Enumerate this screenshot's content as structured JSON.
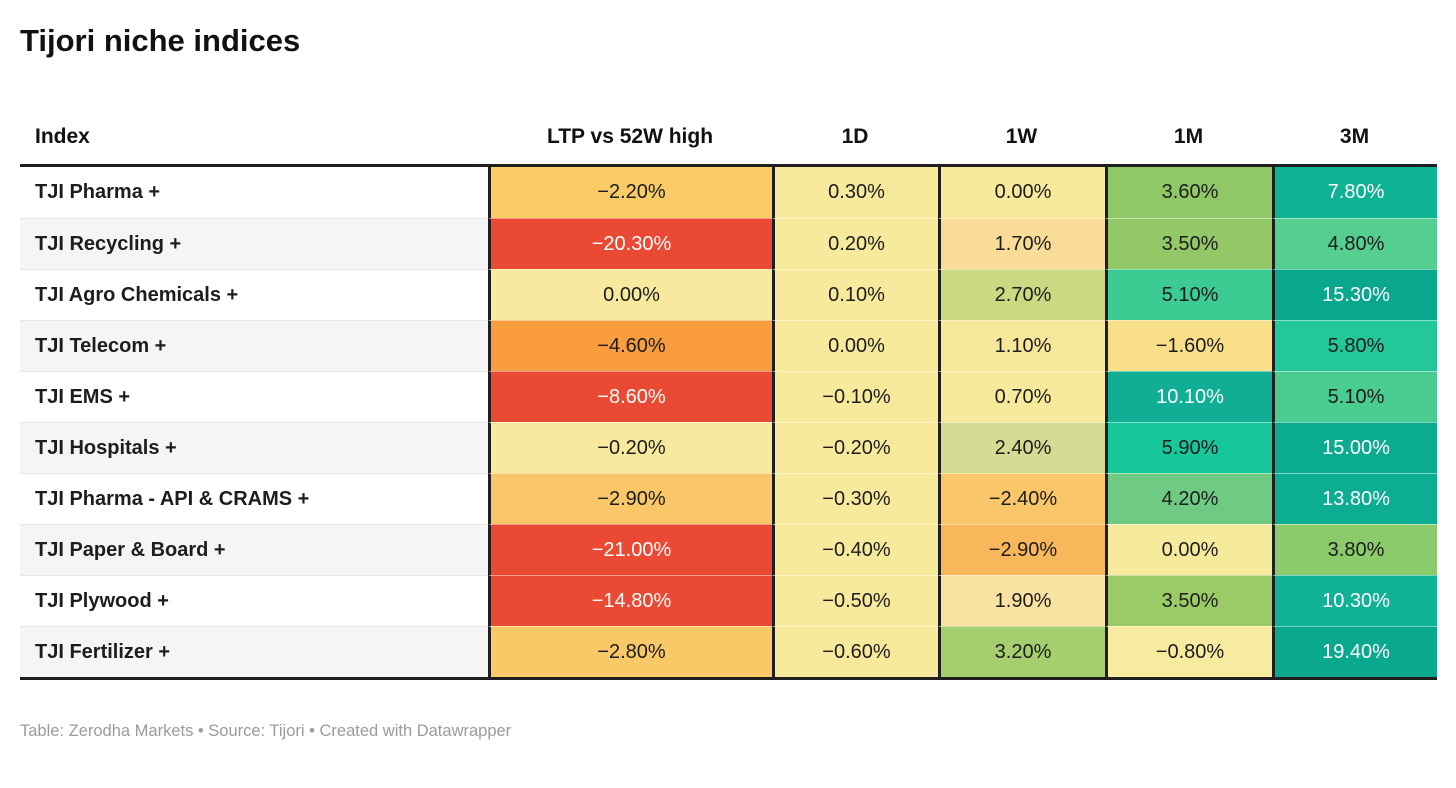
{
  "title": "Tijori niche indices",
  "footer": "Table: Zerodha Markets • Source: Tijori • Created with Datawrapper",
  "table": {
    "columns": [
      "Index",
      "LTP vs 52W high",
      "1D",
      "1W",
      "1M",
      "3M"
    ],
    "rows": [
      {
        "index": "TJI Pharma +",
        "cells": [
          {
            "value": "−2.20%",
            "bg": "#F9CB67",
            "fg": "#1d1d1d"
          },
          {
            "value": "0.30%",
            "bg": "#F7EA9C",
            "fg": "#1d1d1d"
          },
          {
            "value": "0.00%",
            "bg": "#F7EA9C",
            "fg": "#1d1d1d"
          },
          {
            "value": "3.60%",
            "bg": "#90C867",
            "fg": "#1d1d1d"
          },
          {
            "value": "7.80%",
            "bg": "#0EB295",
            "fg": "#ffffff"
          }
        ]
      },
      {
        "index": "TJI Recycling +",
        "cells": [
          {
            "value": "−20.30%",
            "bg": "#EA4A33",
            "fg": "#ffffff"
          },
          {
            "value": "0.20%",
            "bg": "#F7EA9C",
            "fg": "#1d1d1d"
          },
          {
            "value": "1.70%",
            "bg": "#F8DC97",
            "fg": "#1d1d1d"
          },
          {
            "value": "3.50%",
            "bg": "#92C966",
            "fg": "#1d1d1d"
          },
          {
            "value": "4.80%",
            "bg": "#55CF90",
            "fg": "#1d1d1d"
          }
        ]
      },
      {
        "index": "TJI Agro Chemicals +",
        "cells": [
          {
            "value": "0.00%",
            "bg": "#F7EA9E",
            "fg": "#1d1d1d"
          },
          {
            "value": "0.10%",
            "bg": "#F7EA9C",
            "fg": "#1d1d1d"
          },
          {
            "value": "2.70%",
            "bg": "#CBD982",
            "fg": "#1d1d1d"
          },
          {
            "value": "5.10%",
            "bg": "#3BCB93",
            "fg": "#1d1d1d"
          },
          {
            "value": "15.30%",
            "bg": "#09A78E",
            "fg": "#ffffff"
          }
        ]
      },
      {
        "index": "TJI Telecom +",
        "cells": [
          {
            "value": "−4.60%",
            "bg": "#F99D3E",
            "fg": "#1d1d1d"
          },
          {
            "value": "0.00%",
            "bg": "#F7EA9C",
            "fg": "#1d1d1d"
          },
          {
            "value": "1.10%",
            "bg": "#F7E79A",
            "fg": "#1d1d1d"
          },
          {
            "value": "−1.60%",
            "bg": "#F9E088",
            "fg": "#1d1d1d"
          },
          {
            "value": "5.80%",
            "bg": "#22C899",
            "fg": "#1d1d1d"
          }
        ]
      },
      {
        "index": "TJI EMS +",
        "cells": [
          {
            "value": "−8.60%",
            "bg": "#EA4A33",
            "fg": "#ffffff"
          },
          {
            "value": "−0.10%",
            "bg": "#F7EA9C",
            "fg": "#1d1d1d"
          },
          {
            "value": "0.70%",
            "bg": "#F7EA9C",
            "fg": "#1d1d1d"
          },
          {
            "value": "10.10%",
            "bg": "#0FAE95",
            "fg": "#ffffff"
          },
          {
            "value": "5.10%",
            "bg": "#49CD90",
            "fg": "#1d1d1d"
          }
        ]
      },
      {
        "index": "TJI Hospitals +",
        "cells": [
          {
            "value": "−0.20%",
            "bg": "#F7E99D",
            "fg": "#1d1d1d"
          },
          {
            "value": "−0.20%",
            "bg": "#F7EA9C",
            "fg": "#1d1d1d"
          },
          {
            "value": "2.40%",
            "bg": "#D5DB93",
            "fg": "#1d1d1d"
          },
          {
            "value": "5.90%",
            "bg": "#15C79B",
            "fg": "#1d1d1d"
          },
          {
            "value": "15.00%",
            "bg": "#0BAB90",
            "fg": "#ffffff"
          }
        ]
      },
      {
        "index": "TJI Pharma - API & CRAMS +",
        "cells": [
          {
            "value": "−2.90%",
            "bg": "#F9C767",
            "fg": "#1d1d1d"
          },
          {
            "value": "−0.30%",
            "bg": "#F7EA9C",
            "fg": "#1d1d1d"
          },
          {
            "value": "−2.40%",
            "bg": "#F9C66A",
            "fg": "#1d1d1d"
          },
          {
            "value": "4.20%",
            "bg": "#6FCB83",
            "fg": "#1d1d1d"
          },
          {
            "value": "13.80%",
            "bg": "#0CAD92",
            "fg": "#ffffff"
          }
        ]
      },
      {
        "index": "TJI Paper & Board +",
        "cells": [
          {
            "value": "−21.00%",
            "bg": "#EA4A33",
            "fg": "#ffffff"
          },
          {
            "value": "−0.40%",
            "bg": "#F7EA9C",
            "fg": "#1d1d1d"
          },
          {
            "value": "−2.90%",
            "bg": "#F8B75A",
            "fg": "#1d1d1d"
          },
          {
            "value": "0.00%",
            "bg": "#F6EA9D",
            "fg": "#1d1d1d"
          },
          {
            "value": "3.80%",
            "bg": "#8BCB6C",
            "fg": "#1d1d1d"
          }
        ]
      },
      {
        "index": "TJI Plywood +",
        "cells": [
          {
            "value": "−14.80%",
            "bg": "#EA4A33",
            "fg": "#ffffff"
          },
          {
            "value": "−0.50%",
            "bg": "#F7EA9C",
            "fg": "#1d1d1d"
          },
          {
            "value": "1.90%",
            "bg": "#FAE2A3",
            "fg": "#1d1d1d"
          },
          {
            "value": "3.50%",
            "bg": "#9ACB67",
            "fg": "#1d1d1d"
          },
          {
            "value": "10.30%",
            "bg": "#0FB295",
            "fg": "#ffffff"
          }
        ]
      },
      {
        "index": "TJI Fertilizer +",
        "cells": [
          {
            "value": "−2.80%",
            "bg": "#F9C967",
            "fg": "#1d1d1d"
          },
          {
            "value": "−0.60%",
            "bg": "#F7EA9C",
            "fg": "#1d1d1d"
          },
          {
            "value": "3.20%",
            "bg": "#A5CF6F",
            "fg": "#1d1d1d"
          },
          {
            "value": "−0.80%",
            "bg": "#F6EB9E",
            "fg": "#1d1d1d"
          },
          {
            "value": "19.40%",
            "bg": "#0AA98D",
            "fg": "#ffffff"
          }
        ]
      }
    ]
  },
  "style_colors": {
    "border_dark": "#1f1f1f",
    "row_stripe": "#f5f5f5",
    "negative_strong": "#EA4A33",
    "neutral": "#F7EA9C",
    "positive_strong": "#0AA98D",
    "footer_text": "#9b9b9b"
  },
  "chart_data": {
    "type": "table",
    "title": "Tijori niche indices",
    "columns": [
      "Index",
      "LTP vs 52W high",
      "1D",
      "1W",
      "1M",
      "3M"
    ],
    "rows": [
      [
        "TJI Pharma +",
        -2.2,
        0.3,
        0.0,
        3.6,
        7.8
      ],
      [
        "TJI Recycling +",
        -20.3,
        0.2,
        1.7,
        3.5,
        4.8
      ],
      [
        "TJI Agro Chemicals +",
        0.0,
        0.1,
        2.7,
        5.1,
        15.3
      ],
      [
        "TJI Telecom +",
        -4.6,
        0.0,
        1.1,
        -1.6,
        5.8
      ],
      [
        "TJI EMS +",
        -8.6,
        -0.1,
        0.7,
        10.1,
        5.1
      ],
      [
        "TJI Hospitals +",
        -0.2,
        -0.2,
        2.4,
        5.9,
        15.0
      ],
      [
        "TJI Pharma - API & CRAMS +",
        -2.9,
        -0.3,
        -2.4,
        4.2,
        13.8
      ],
      [
        "TJI Paper & Board +",
        -21.0,
        -0.4,
        -2.9,
        0.0,
        3.8
      ],
      [
        "TJI Plywood +",
        -14.8,
        -0.5,
        1.9,
        3.5,
        10.3
      ],
      [
        "TJI Fertilizer +",
        -2.8,
        -0.6,
        3.2,
        -0.8,
        19.4
      ]
    ],
    "units": "%",
    "color_coding": "heatmap: red = strongly negative, pale yellow ≈ 0, green/teal = positive",
    "legend_position": "none",
    "grid": "off"
  }
}
